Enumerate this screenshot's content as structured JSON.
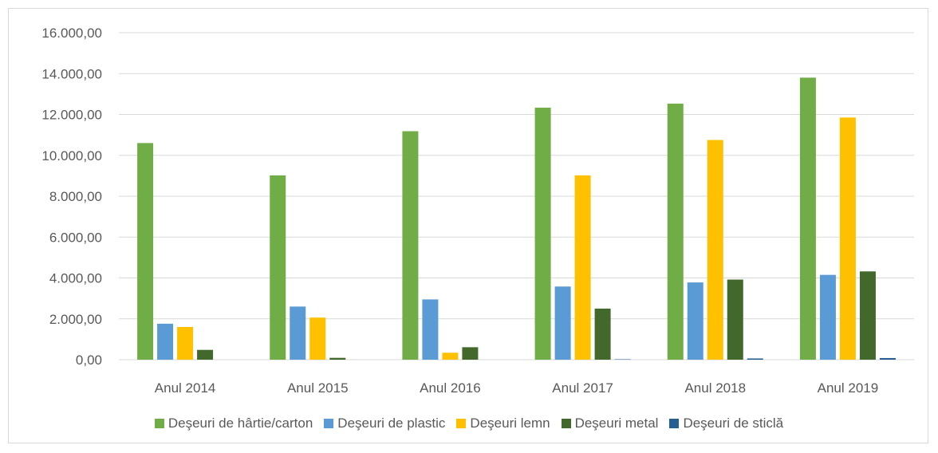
{
  "chart_data": {
    "type": "bar",
    "title": "",
    "xlabel": "",
    "ylabel": "",
    "categories": [
      "Anul 2014",
      "Anul 2015",
      "Anul 2016",
      "Anul 2017",
      "Anul 2018",
      "Anul 2019"
    ],
    "ylim": [
      0,
      16000
    ],
    "yticks": [
      "0,00",
      "2.000,00",
      "4.000,00",
      "6.000,00",
      "8.000,00",
      "10.000,00",
      "12.000,00",
      "14.000,00",
      "16.000,00"
    ],
    "grid": true,
    "legend_position": "bottom",
    "series": [
      {
        "name": "Deşeuri de hârtie/carton",
        "color": "#70ad47",
        "values": [
          10600,
          9020,
          11180,
          12330,
          12530,
          13800
        ]
      },
      {
        "name": "Deşeuri de plastic",
        "color": "#5b9bd5",
        "values": [
          1760,
          2600,
          2950,
          3580,
          3780,
          4150
        ]
      },
      {
        "name": "Deşeuri lemn",
        "color": "#ffc000",
        "values": [
          1600,
          2060,
          340,
          9020,
          10750,
          11850
        ]
      },
      {
        "name": "Deşeuri metal",
        "color": "#43682b",
        "values": [
          480,
          90,
          610,
          2500,
          3920,
          4320
        ]
      },
      {
        "name": "Deşeuri de sticlă",
        "color": "#255e91",
        "values": [
          0,
          0,
          0,
          20,
          60,
          80
        ]
      }
    ]
  }
}
